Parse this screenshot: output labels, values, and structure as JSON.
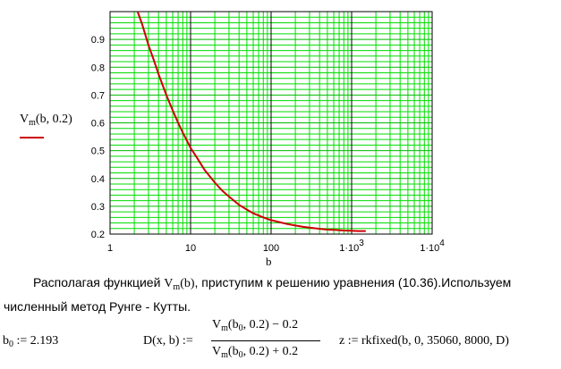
{
  "chart_data": {
    "type": "line",
    "xscale": "log",
    "xlim": [
      1,
      10000
    ],
    "ylim": [
      0.2,
      1.0
    ],
    "grid": true,
    "xticks": [
      1,
      10,
      100,
      1000,
      10000
    ],
    "xtick_labels": [
      "1",
      "10",
      "100",
      "1·10",
      "1·10"
    ],
    "xtick_exponents": [
      "",
      "",
      "",
      "3",
      "4"
    ],
    "yticks": [
      0.2,
      0.3,
      0.4,
      0.5,
      0.6,
      0.7,
      0.8,
      0.9
    ],
    "ytick_labels": [
      "0.2",
      "0.3",
      "0.4",
      "0.5",
      "0.6",
      "0.7",
      "0.8",
      "0.9"
    ],
    "xlabel": "b",
    "series": [
      {
        "name": "Vm(b, 0.2)",
        "name_main": "V",
        "name_sub": "m",
        "name_args": "(b, 0.2)",
        "color": "#cc0000",
        "x": [
          2.2,
          2.5,
          3,
          3.5,
          4,
          5,
          6,
          7,
          8,
          10,
          12,
          15,
          20,
          25,
          30,
          40,
          50,
          60,
          80,
          100,
          130,
          160,
          200,
          250,
          300,
          400,
          500,
          600,
          700,
          800,
          1000,
          1200,
          1500
        ],
        "y": [
          1.0,
          0.955,
          0.88,
          0.825,
          0.775,
          0.7,
          0.645,
          0.6,
          0.565,
          0.51,
          0.475,
          0.43,
          0.385,
          0.355,
          0.335,
          0.305,
          0.288,
          0.275,
          0.26,
          0.25,
          0.242,
          0.236,
          0.231,
          0.226,
          0.223,
          0.219,
          0.216,
          0.215,
          0.214,
          0.213,
          0.212,
          0.211,
          0.211
        ]
      }
    ]
  },
  "paragraph": {
    "before": "Располагая функцией",
    "func_main": "V",
    "func_sub": "m",
    "func_args": "(b)",
    "after": ", приступим к решению уравнения (10.36).Используем",
    "line2": "численный метод Рунге - Кутты."
  },
  "formulas": {
    "b0": {
      "name": "b",
      "sub": "0",
      "assign": ":=",
      "value": "2.193"
    },
    "D": {
      "lhs": "D(x, b) :=",
      "num_main": "V",
      "num_sub": "m",
      "num_open": "(b",
      "num_sub2": "0",
      "num_rest": ", 0.2) − 0.2",
      "den_main": "V",
      "den_sub": "m",
      "den_open": "(b",
      "den_sub2": "0",
      "den_rest": ", 0.2) + 0.2"
    },
    "z": {
      "text": "z := rkfixed(b, 0, 35060, 8000, D)"
    }
  }
}
